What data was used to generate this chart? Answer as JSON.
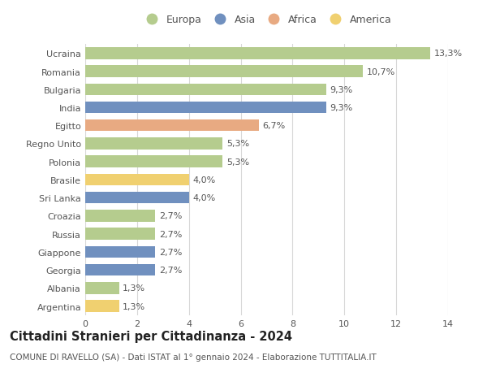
{
  "countries": [
    "Ucraina",
    "Romania",
    "Bulgaria",
    "India",
    "Egitto",
    "Regno Unito",
    "Polonia",
    "Brasile",
    "Sri Lanka",
    "Croazia",
    "Russia",
    "Giappone",
    "Georgia",
    "Albania",
    "Argentina"
  ],
  "values": [
    13.3,
    10.7,
    9.3,
    9.3,
    6.7,
    5.3,
    5.3,
    4.0,
    4.0,
    2.7,
    2.7,
    2.7,
    2.7,
    1.3,
    1.3
  ],
  "continents": [
    "Europa",
    "Europa",
    "Europa",
    "Asia",
    "Africa",
    "Europa",
    "Europa",
    "America",
    "Asia",
    "Europa",
    "Europa",
    "Asia",
    "Asia",
    "Europa",
    "America"
  ],
  "continent_colors": {
    "Europa": "#b5cc8e",
    "Asia": "#7090bf",
    "Africa": "#e8aa82",
    "America": "#f0d070"
  },
  "legend_order": [
    "Europa",
    "Asia",
    "Africa",
    "America"
  ],
  "labels": [
    "13,3%",
    "10,7%",
    "9,3%",
    "9,3%",
    "6,7%",
    "5,3%",
    "5,3%",
    "4,0%",
    "4,0%",
    "2,7%",
    "2,7%",
    "2,7%",
    "2,7%",
    "1,3%",
    "1,3%"
  ],
  "xlim": [
    0,
    14
  ],
  "xticks": [
    0,
    2,
    4,
    6,
    8,
    10,
    12,
    14
  ],
  "title": "Cittadini Stranieri per Cittadinanza - 2024",
  "subtitle": "COMUNE DI RAVELLO (SA) - Dati ISTAT al 1° gennaio 2024 - Elaborazione TUTTITALIA.IT",
  "background_color": "#ffffff",
  "grid_color": "#d8d8d8",
  "bar_height": 0.65,
  "label_fontsize": 8.0,
  "tick_fontsize": 8.0,
  "title_fontsize": 10.5,
  "subtitle_fontsize": 7.5,
  "label_color": "#555555",
  "ytick_color": "#555555"
}
